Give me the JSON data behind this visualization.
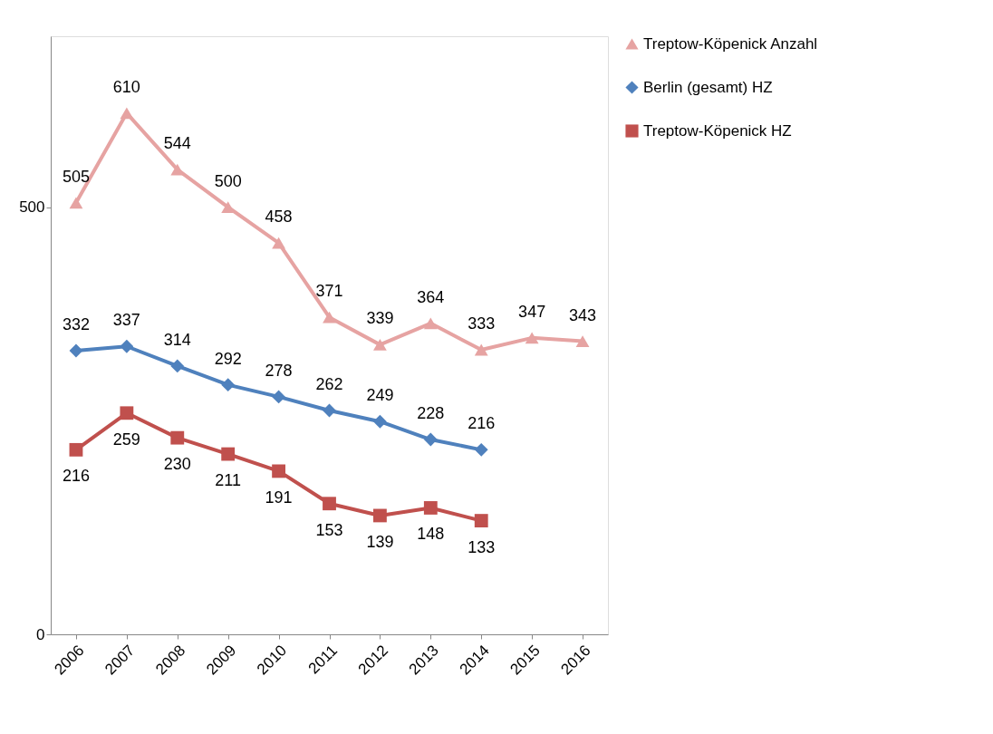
{
  "chart_data": {
    "type": "line",
    "categories": [
      "2006",
      "2007",
      "2008",
      "2009",
      "2010",
      "2011",
      "2012",
      "2013",
      "2014",
      "2015",
      "2016"
    ],
    "series": [
      {
        "name": "Treptow-Köpenick Anzahl",
        "color": "#e6a3a2",
        "marker": "triangle",
        "values": [
          505,
          610,
          544,
          500,
          458,
          371,
          339,
          364,
          333,
          347,
          343
        ]
      },
      {
        "name": "Berlin (gesamt) HZ",
        "color": "#4f81bd",
        "marker": "diamond",
        "values": [
          332,
          337,
          314,
          292,
          278,
          262,
          249,
          228,
          216,
          null,
          null
        ]
      },
      {
        "name": "Treptow-Köpenick HZ",
        "color": "#c0504d",
        "marker": "square",
        "values": [
          216,
          259,
          230,
          211,
          191,
          153,
          139,
          148,
          133,
          null,
          null
        ]
      }
    ],
    "ylim": [
      0,
      700
    ],
    "yticks": [
      0,
      500
    ],
    "grid": false,
    "legend": "right",
    "data_labels": true,
    "line_style": "solid"
  }
}
